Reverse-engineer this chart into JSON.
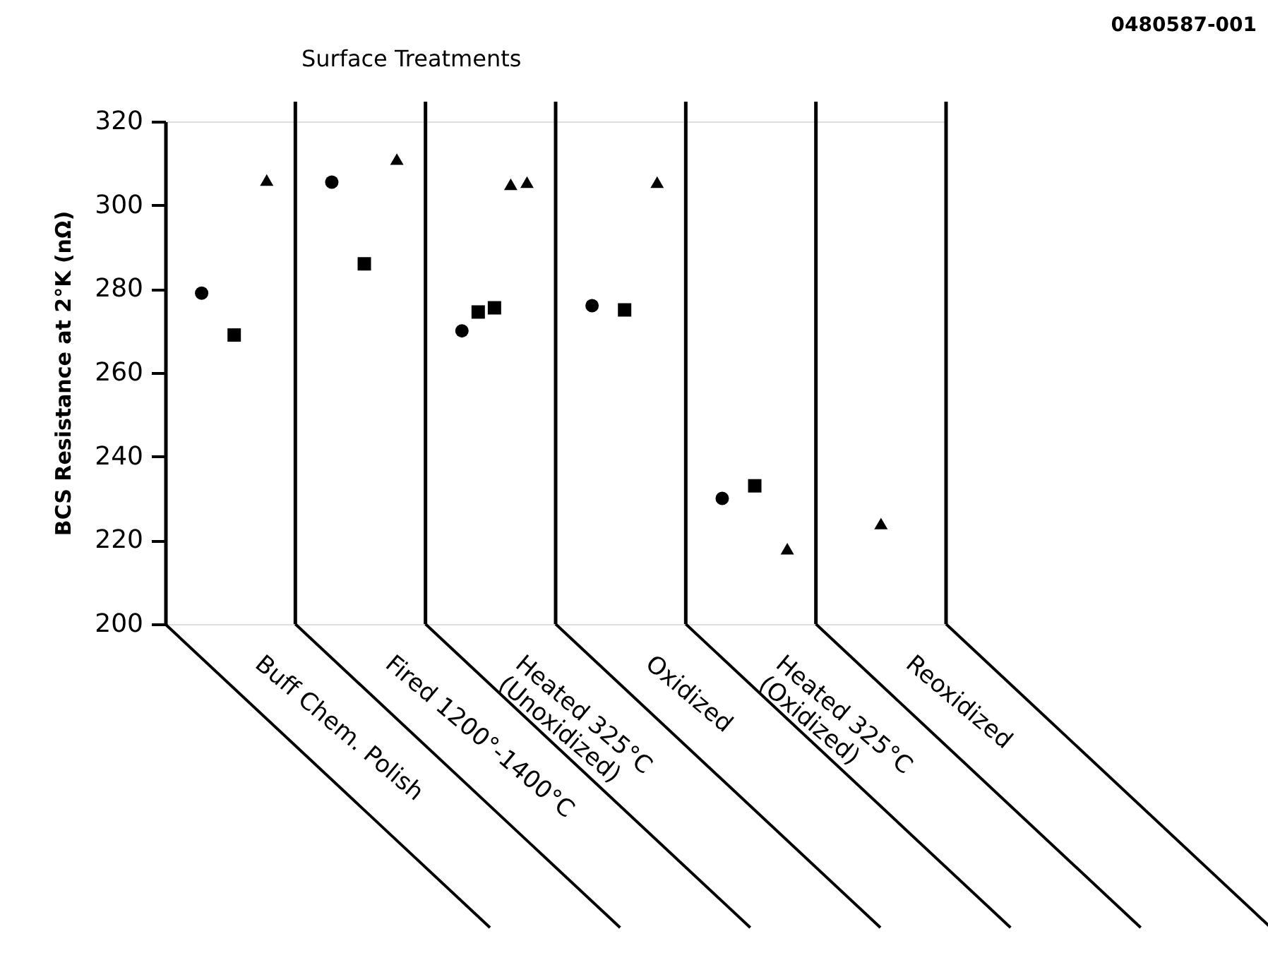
{
  "chart_data": {
    "type": "scatter",
    "title": "Surface Treatments",
    "ylabel": "BCS Resistance at 2°K (nΩ)",
    "categories": [
      "Buff Chem. Polish",
      "Fired 1200°-1400°C",
      "Heated 325°C\n(Unoxidized)",
      "Oxidized",
      "Heated 325°C\n(Oxidized)",
      "Reoxidized"
    ],
    "series": [
      {
        "color": "#000000",
        "marker": "circle",
        "x": [
          "Buff Chem. Polish",
          "Fired 1200°-1400°C",
          "Heated 325°C\n(Unoxidized)",
          "Oxidized",
          "Heated 325°C\n(Oxidized)"
        ],
        "values": [
          279,
          305.5,
          270,
          276,
          230
        ]
      },
      {
        "color": "#000000",
        "marker": "square",
        "x": [
          "Buff Chem. Polish",
          "Fired 1200°-1400°C",
          "Heated 325°C\n(Unoxidized)",
          "Heated 325°C\n(Unoxidized)",
          "Oxidized",
          "Heated 325°C\n(Oxidized)"
        ],
        "values": [
          269,
          286,
          274.5,
          275.5,
          275,
          233
        ]
      },
      {
        "color": "#000000",
        "marker": "triangle",
        "x": [
          "Buff Chem. Polish",
          "Fired 1200°-1400°C",
          "Heated 325°C\n(Unoxidized)",
          "Heated 325°C\n(Unoxidized)",
          "Oxidized",
          "Heated 325°C\n(Oxidized)",
          "Reoxidized"
        ],
        "values": [
          306,
          311,
          305,
          305.5,
          305.5,
          218,
          224
        ]
      }
    ],
    "ylim": [
      200,
      320
    ],
    "yticks": [
      200,
      220,
      240,
      260,
      280,
      300,
      320
    ],
    "grid": false,
    "legend": false,
    "annotations": [
      "0480587-001"
    ]
  }
}
